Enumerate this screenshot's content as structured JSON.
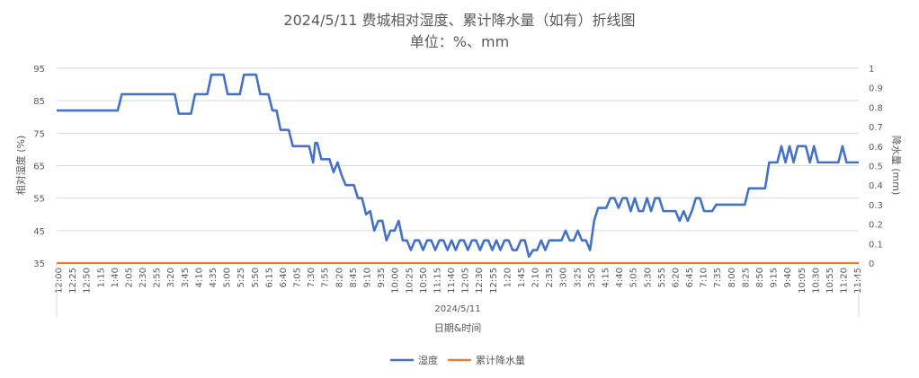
{
  "chart_data": {
    "type": "line",
    "title": "2024/5/11 费城相对湿度、累计降水量（如有）折线图",
    "subtitle": "单位：%、mm",
    "xlabel": "日期&时间",
    "x_group_label": "2024/5/11",
    "ylabel": "相对湿度 (%)",
    "y2label": "降水量 (mm)",
    "ylim": [
      35,
      95
    ],
    "y_ticks": [
      35,
      45,
      55,
      65,
      75,
      85,
      95
    ],
    "y2lim": [
      0,
      1
    ],
    "y2_ticks": [
      "0",
      "0.1",
      "0.2",
      "0.3",
      "0.4",
      "0.5",
      "0.6",
      "0.7",
      "0.8",
      "0.9",
      "1"
    ],
    "grid": true,
    "legend_position": "bottom",
    "x_tick_labels": [
      "12:00",
      "12:25",
      "12:50",
      "1:15",
      "1:40",
      "2:05",
      "2:30",
      "2:55",
      "3:20",
      "3:45",
      "4:10",
      "4:35",
      "5:00",
      "5:25",
      "5:50",
      "6:15",
      "6:40",
      "7:05",
      "7:30",
      "7:55",
      "8:20",
      "8:45",
      "9:10",
      "9:35",
      "10:00",
      "10:25",
      "10:50",
      "11:15",
      "11:40",
      "12:05",
      "12:30",
      "12:55",
      "1:20",
      "1:45",
      "2:10",
      "2:35",
      "3:00",
      "3:25",
      "3:50",
      "4:15",
      "4:40",
      "5:05",
      "5:30",
      "5:55",
      "6:20",
      "6:45",
      "7:10",
      "7:35",
      "8:00",
      "8:25",
      "8:50",
      "9:15",
      "9:40",
      "10:05",
      "10:30",
      "10:55",
      "11:20",
      "11:45"
    ],
    "series": [
      {
        "name": "湿度",
        "color": "#4472C4",
        "axis": "left",
        "points": [
          [
            0,
            82
          ],
          [
            15,
            82
          ],
          [
            16,
            87
          ],
          [
            29,
            87
          ],
          [
            30,
            81
          ],
          [
            33,
            81
          ],
          [
            34,
            87
          ],
          [
            37,
            87
          ],
          [
            38,
            93
          ],
          [
            41,
            93
          ],
          [
            42,
            87
          ],
          [
            45,
            87
          ],
          [
            46,
            93
          ],
          [
            49,
            93
          ],
          [
            50,
            87
          ],
          [
            52,
            87
          ],
          [
            53,
            82
          ],
          [
            54,
            82
          ],
          [
            55,
            76
          ],
          [
            57,
            76
          ],
          [
            58,
            71
          ],
          [
            62,
            71
          ],
          [
            63,
            66
          ],
          [
            63.5,
            72
          ],
          [
            64,
            72
          ],
          [
            65,
            67
          ],
          [
            67,
            67
          ],
          [
            68,
            63
          ],
          [
            69,
            66
          ],
          [
            70,
            62
          ],
          [
            71,
            59
          ],
          [
            73,
            59
          ],
          [
            74,
            55
          ],
          [
            75,
            55
          ],
          [
            76,
            50
          ],
          [
            77,
            51
          ],
          [
            78,
            45
          ],
          [
            79,
            48
          ],
          [
            80,
            48
          ],
          [
            81,
            42
          ],
          [
            82,
            45
          ],
          [
            83,
            45
          ],
          [
            84,
            48
          ],
          [
            85,
            42
          ],
          [
            86,
            42
          ],
          [
            87,
            39
          ],
          [
            88,
            42
          ],
          [
            89,
            42
          ],
          [
            90,
            39
          ],
          [
            91,
            42
          ],
          [
            92,
            42
          ],
          [
            93,
            39
          ],
          [
            94,
            42
          ],
          [
            95,
            42
          ],
          [
            96,
            39
          ],
          [
            97,
            42
          ],
          [
            98,
            39
          ],
          [
            99,
            42
          ],
          [
            100,
            42
          ],
          [
            101,
            39
          ],
          [
            102,
            42
          ],
          [
            103,
            42
          ],
          [
            104,
            39
          ],
          [
            105,
            42
          ],
          [
            106,
            42
          ],
          [
            107,
            39
          ],
          [
            108,
            42
          ],
          [
            109,
            39
          ],
          [
            110,
            42
          ],
          [
            111,
            42
          ],
          [
            112,
            39
          ],
          [
            113,
            39
          ],
          [
            114,
            42
          ],
          [
            115,
            42
          ],
          [
            116,
            37
          ],
          [
            117,
            39
          ],
          [
            118,
            39
          ],
          [
            119,
            42
          ],
          [
            120,
            39
          ],
          [
            121,
            42
          ],
          [
            124,
            42
          ],
          [
            125,
            45
          ],
          [
            126,
            42
          ],
          [
            127,
            42
          ],
          [
            128,
            45
          ],
          [
            129,
            42
          ],
          [
            130,
            42
          ],
          [
            131,
            39
          ],
          [
            132,
            48
          ],
          [
            133,
            52
          ],
          [
            135,
            52
          ],
          [
            136,
            55
          ],
          [
            137,
            55
          ],
          [
            138,
            52
          ],
          [
            139,
            55
          ],
          [
            140,
            55
          ],
          [
            141,
            51
          ],
          [
            142,
            55
          ],
          [
            143,
            51
          ],
          [
            144,
            51
          ],
          [
            145,
            55
          ],
          [
            146,
            51
          ],
          [
            147,
            55
          ],
          [
            148,
            55
          ],
          [
            149,
            51
          ],
          [
            152,
            51
          ],
          [
            153,
            48
          ],
          [
            154,
            51
          ],
          [
            155,
            48
          ],
          [
            156,
            51
          ],
          [
            157,
            55
          ],
          [
            158,
            55
          ],
          [
            159,
            51
          ],
          [
            161,
            51
          ],
          [
            162,
            53
          ],
          [
            169,
            53
          ],
          [
            170,
            58
          ],
          [
            174,
            58
          ],
          [
            175,
            66
          ],
          [
            177,
            66
          ],
          [
            178,
            71
          ],
          [
            179,
            66
          ],
          [
            180,
            71
          ],
          [
            181,
            66
          ],
          [
            182,
            71
          ],
          [
            184,
            71
          ],
          [
            185,
            66
          ],
          [
            186,
            71
          ],
          [
            187,
            66
          ],
          [
            192,
            66
          ],
          [
            193,
            71
          ],
          [
            194,
            66
          ],
          [
            197,
            66
          ]
        ]
      },
      {
        "name": "累计降水量",
        "color": "#ED7D31",
        "axis": "right",
        "points": [
          [
            0,
            0
          ],
          [
            197,
            0
          ]
        ]
      }
    ]
  }
}
